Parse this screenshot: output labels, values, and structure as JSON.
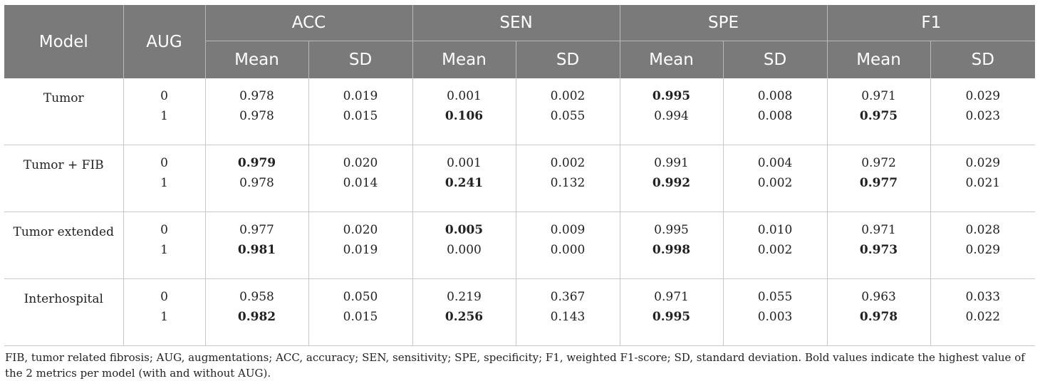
{
  "headers": {
    "model": "Model",
    "aug": "AUG",
    "groups": [
      "ACC",
      "SEN",
      "SPE",
      "F1"
    ],
    "mean": "Mean",
    "sd": "SD"
  },
  "rows": [
    {
      "model": "Tumor",
      "aug": [
        "0",
        "1"
      ],
      "cells": [
        [
          "0.978",
          "0.978"
        ],
        [
          "0.019",
          "0.015"
        ],
        [
          "0.001",
          "0.106"
        ],
        [
          "0.002",
          "0.055"
        ],
        [
          "0.995",
          "0.994"
        ],
        [
          "0.008",
          "0.008"
        ],
        [
          "0.971",
          "0.975"
        ],
        [
          "0.029",
          "0.023"
        ]
      ],
      "bold": [
        [
          false,
          false
        ],
        [
          false,
          false
        ],
        [
          false,
          true
        ],
        [
          false,
          false
        ],
        [
          true,
          false
        ],
        [
          false,
          false
        ],
        [
          false,
          true
        ],
        [
          false,
          false
        ]
      ]
    },
    {
      "model": "Tumor + FIB",
      "aug": [
        "0",
        "1"
      ],
      "cells": [
        [
          "0.979",
          "0.978"
        ],
        [
          "0.020",
          "0.014"
        ],
        [
          "0.001",
          "0.241"
        ],
        [
          "0.002",
          "0.132"
        ],
        [
          "0.991",
          "0.992"
        ],
        [
          "0.004",
          "0.002"
        ],
        [
          "0.972",
          "0.977"
        ],
        [
          "0.029",
          "0.021"
        ]
      ],
      "bold": [
        [
          true,
          false
        ],
        [
          false,
          false
        ],
        [
          false,
          true
        ],
        [
          false,
          false
        ],
        [
          false,
          true
        ],
        [
          false,
          false
        ],
        [
          false,
          true
        ],
        [
          false,
          false
        ]
      ]
    },
    {
      "model": "Tumor extended",
      "aug": [
        "0",
        "1"
      ],
      "cells": [
        [
          "0.977",
          "0.981"
        ],
        [
          "0.020",
          "0.019"
        ],
        [
          "0.005",
          "0.000"
        ],
        [
          "0.009",
          "0.000"
        ],
        [
          "0.995",
          "0.998"
        ],
        [
          "0.010",
          "0.002"
        ],
        [
          "0.971",
          "0.973"
        ],
        [
          "0.028",
          "0.029"
        ]
      ],
      "bold": [
        [
          false,
          true
        ],
        [
          false,
          false
        ],
        [
          true,
          false
        ],
        [
          false,
          false
        ],
        [
          false,
          true
        ],
        [
          false,
          false
        ],
        [
          false,
          true
        ],
        [
          false,
          false
        ]
      ]
    },
    {
      "model": "Interhospital",
      "aug": [
        "0",
        "1"
      ],
      "cells": [
        [
          "0.958",
          "0.982"
        ],
        [
          "0.050",
          "0.015"
        ],
        [
          "0.219",
          "0.256"
        ],
        [
          "0.367",
          "0.143"
        ],
        [
          "0.971",
          "0.995"
        ],
        [
          "0.055",
          "0.003"
        ],
        [
          "0.963",
          "0.978"
        ],
        [
          "0.033",
          "0.022"
        ]
      ],
      "bold": [
        [
          false,
          true
        ],
        [
          false,
          false
        ],
        [
          false,
          true
        ],
        [
          false,
          false
        ],
        [
          false,
          true
        ],
        [
          false,
          false
        ],
        [
          false,
          true
        ],
        [
          false,
          false
        ]
      ]
    }
  ],
  "footnote": "FIB, tumor related fibrosis; AUG, augmentations; ACC, accuracy; SEN, sensitivity; SPE, specificity; F1, weighted F1-score; SD, standard deviation. Bold values indicate the highest value of the 2 metrics per model (with and without AUG)."
}
